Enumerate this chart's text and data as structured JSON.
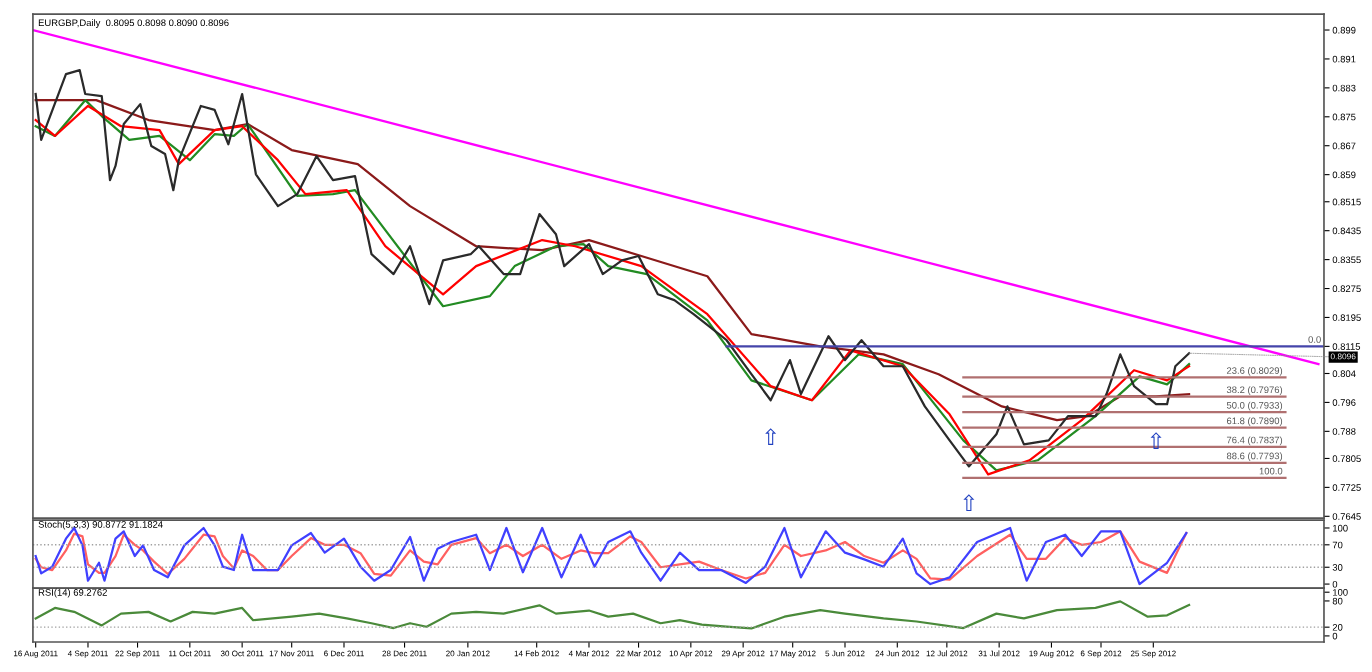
{
  "chart_data": [
    {
      "type": "line",
      "title": "EURGBP,Daily  0.8095 0.8098 0.8090 0.8096",
      "xlim": [
        "2011-08-15",
        "2012-11-26"
      ],
      "ylim": [
        0.764,
        0.9034
      ],
      "yticks": [
        0.899,
        0.891,
        0.883,
        0.875,
        0.867,
        0.859,
        0.8515,
        0.8435,
        0.8355,
        0.8275,
        0.8195,
        0.8115,
        0.804,
        0.796,
        0.788,
        0.7805,
        0.7725,
        0.7645
      ],
      "tick_labels": "y",
      "series": [
        {
          "color": "#ff00ff",
          "x": [
            "2011-08-15",
            "2012-11-24"
          ],
          "values": [
            0.899,
            0.8066
          ]
        },
        {
          "color": "#8b1a1a",
          "x": [
            "2011-08-16",
            "2011-09-07",
            "2011-09-26",
            "2011-10-20",
            "2011-11-01",
            "2011-11-17",
            "2011-12-11",
            "2011-12-30",
            "2012-01-23",
            "2012-02-16",
            "2012-03-04",
            "2012-03-23",
            "2012-04-16",
            "2012-05-02",
            "2012-05-27",
            "2012-06-19",
            "2012-07-09",
            "2012-08-01",
            "2012-08-21",
            "2012-09-01",
            "2012-09-13",
            "2012-09-26",
            "2012-10-08"
          ],
          "values": [
            0.8796,
            0.8796,
            0.8741,
            0.8713,
            0.873,
            0.8658,
            0.8619,
            0.8503,
            0.8392,
            0.8381,
            0.8409,
            0.8365,
            0.8309,
            0.8149,
            0.8115,
            0.8093,
            0.8038,
            0.7949,
            0.7911,
            0.7922,
            0.7977,
            0.7977,
            0.7983
          ]
        },
        {
          "color": "#228b22",
          "x": [
            "2011-08-16",
            "2011-08-23",
            "2011-09-03",
            "2011-09-09",
            "2011-09-19",
            "2011-09-30",
            "2011-10-11",
            "2011-10-20",
            "2011-10-27",
            "2011-11-01",
            "2011-11-19",
            "2011-12-02",
            "2011-12-10",
            "2012-01-11",
            "2012-01-28",
            "2012-02-06",
            "2012-02-21",
            "2012-03-02",
            "2012-03-11",
            "2012-03-25",
            "2012-04-16",
            "2012-05-02",
            "2012-05-24",
            "2012-06-10",
            "2012-06-26",
            "2012-07-18",
            "2012-07-30",
            "2012-08-14",
            "2012-09-04",
            "2012-09-20",
            "2012-09-30",
            "2012-10-08"
          ],
          "values": [
            0.8724,
            0.8697,
            0.8796,
            0.8752,
            0.8686,
            0.8697,
            0.863,
            0.8702,
            0.8697,
            0.873,
            0.8531,
            0.8536,
            0.8547,
            0.8226,
            0.8254,
            0.8337,
            0.8392,
            0.8398,
            0.8337,
            0.8315,
            0.8187,
            0.8021,
            0.7966,
            0.8093,
            0.8066,
            0.7855,
            0.7772,
            0.78,
            0.7922,
            0.8032,
            0.801,
            0.8066
          ]
        },
        {
          "color": "#ff0000",
          "x": [
            "2011-08-16",
            "2011-08-23",
            "2011-09-04",
            "2011-09-16",
            "2011-09-30",
            "2011-10-07",
            "2011-10-20",
            "2011-10-30",
            "2011-11-12",
            "2011-11-22",
            "2011-12-07",
            "2011-12-21",
            "2012-01-11",
            "2012-01-23",
            "2012-02-16",
            "2012-02-28",
            "2012-03-23",
            "2012-04-16",
            "2012-05-09",
            "2012-05-24",
            "2012-06-07",
            "2012-06-26",
            "2012-07-13",
            "2012-07-27",
            "2012-08-11",
            "2012-08-30",
            "2012-09-18",
            "2012-09-30",
            "2012-10-08"
          ],
          "values": [
            0.8741,
            0.8697,
            0.878,
            0.8724,
            0.8713,
            0.8619,
            0.8713,
            0.8724,
            0.863,
            0.8536,
            0.8547,
            0.8392,
            0.8259,
            0.8337,
            0.8409,
            0.8392,
            0.8337,
            0.8204,
            0.8005,
            0.7966,
            0.8104,
            0.806,
            0.7927,
            0.7761,
            0.78,
            0.7911,
            0.8049,
            0.8021,
            0.806
          ]
        },
        {
          "color": "#2a2a2a",
          "x": [
            "2011-08-16",
            "2011-08-18",
            "2011-08-27",
            "2011-09-01",
            "2011-09-03",
            "2011-09-09",
            "2011-09-12",
            "2011-09-14",
            "2011-09-17",
            "2011-09-23",
            "2011-09-27",
            "2011-10-02",
            "2011-10-05",
            "2011-10-07",
            "2011-10-15",
            "2011-10-20",
            "2011-10-25",
            "2011-10-30",
            "2011-11-01",
            "2011-11-04",
            "2011-11-12",
            "2011-11-19",
            "2011-11-26",
            "2011-12-02",
            "2011-12-10",
            "2011-12-16",
            "2011-12-24",
            "2011-12-30",
            "2012-01-06",
            "2012-01-11",
            "2012-01-21",
            "2012-01-24",
            "2012-02-02",
            "2012-02-08",
            "2012-02-15",
            "2012-02-21",
            "2012-02-24",
            "2012-03-04",
            "2012-03-09",
            "2012-03-16",
            "2012-03-22",
            "2012-03-29",
            "2012-04-04",
            "2012-04-11",
            "2012-04-23",
            "2012-05-02",
            "2012-05-09",
            "2012-05-16",
            "2012-05-20",
            "2012-05-30",
            "2012-06-05",
            "2012-06-11",
            "2012-06-19",
            "2012-06-26",
            "2012-07-04",
            "2012-07-13",
            "2012-07-20",
            "2012-07-30",
            "2012-08-03",
            "2012-08-09",
            "2012-08-18",
            "2012-08-25",
            "2012-09-04",
            "2012-09-08",
            "2012-09-13",
            "2012-09-18",
            "2012-09-26",
            "2012-09-30",
            "2012-10-03",
            "2012-10-08"
          ],
          "values": [
            0.8813,
            0.8686,
            0.8868,
            0.8879,
            0.8813,
            0.8807,
            0.8575,
            0.8614,
            0.873,
            0.8785,
            0.8669,
            0.8647,
            0.8547,
            0.863,
            0.878,
            0.8769,
            0.8674,
            0.8813,
            0.8724,
            0.8591,
            0.8503,
            0.8536,
            0.8641,
            0.8575,
            0.8586,
            0.837,
            0.8315,
            0.8392,
            0.8232,
            0.8353,
            0.837,
            0.8392,
            0.8315,
            0.8315,
            0.8481,
            0.8425,
            0.8337,
            0.8398,
            0.8315,
            0.8353,
            0.8365,
            0.8259,
            0.8243,
            0.8204,
            0.8132,
            0.8038,
            0.7966,
            0.8077,
            0.7983,
            0.8143,
            0.8077,
            0.8132,
            0.806,
            0.806,
            0.7949,
            0.7855,
            0.7783,
            0.7872,
            0.7949,
            0.7844,
            0.7855,
            0.7922,
            0.7922,
            0.7983,
            0.8093,
            0.8005,
            0.7955,
            0.7955,
            0.806,
            0.8096
          ]
        },
        {
          "name": "0.0",
          "color": "#4444aa",
          "x": [
            "2012-04-23",
            "2012-11-26"
          ],
          "values": [
            0.8115,
            0.8115
          ]
        },
        {
          "name": "23.6 (0.8029)",
          "color": "#b07070",
          "x": [
            "2012-07-18",
            "2012-11-12"
          ],
          "values": [
            0.8029,
            0.8029
          ]
        },
        {
          "name": "38.2 (0.7976)",
          "color": "#b07070",
          "x": [
            "2012-07-18",
            "2012-11-12"
          ],
          "values": [
            0.7976,
            0.7976
          ]
        },
        {
          "name": "50.0 (0.7933)",
          "color": "#b07070",
          "x": [
            "2012-07-18",
            "2012-11-12"
          ],
          "values": [
            0.7933,
            0.7933
          ]
        },
        {
          "name": "61.8 (0.7890)",
          "color": "#b07070",
          "x": [
            "2012-07-18",
            "2012-11-12"
          ],
          "values": [
            0.789,
            0.789
          ]
        },
        {
          "name": "76.4 (0.7837)",
          "color": "#b07070",
          "x": [
            "2012-07-18",
            "2012-11-12"
          ],
          "values": [
            0.7837,
            0.7837
          ]
        },
        {
          "name": "88.6 (0.7793)",
          "color": "#b07070",
          "x": [
            "2012-07-18",
            "2012-11-12"
          ],
          "values": [
            0.7793,
            0.7793
          ]
        },
        {
          "name": "100.0",
          "color": "#b07070",
          "x": [
            "2012-07-18",
            "2012-11-12"
          ],
          "values": [
            0.7751,
            0.7751
          ]
        }
      ],
      "annotations": [
        {
          "text": "0.8096",
          "x": "2012-10-08",
          "y": 0.8096
        },
        {
          "text": "⇧",
          "x": "2012-05-09",
          "y": 0.7966
        },
        {
          "text": "⇧",
          "x": "2012-07-20",
          "y": 0.7783
        },
        {
          "text": "⇧",
          "x": "2012-09-26",
          "y": 0.7955
        }
      ]
    },
    {
      "type": "line",
      "title": "Stoch(5,3,3) 90.8772 91.1824",
      "xlim": [
        "2011-08-15",
        "2012-11-26"
      ],
      "ylim": [
        -7,
        114
      ],
      "yticks": [
        0,
        30,
        70,
        100
      ],
      "tick_labels": "y",
      "x": [
        "2011-08-16",
        "2011-08-18",
        "2011-08-22",
        "2011-08-27",
        "2011-08-30",
        "2011-09-02",
        "2011-09-04",
        "2011-09-08",
        "2011-09-10",
        "2011-09-14",
        "2011-09-17",
        "2011-09-21",
        "2011-09-24",
        "2011-09-28",
        "2011-10-03",
        "2011-10-09",
        "2011-10-16",
        "2011-10-20",
        "2011-10-23",
        "2011-10-27",
        "2011-10-30",
        "2011-11-03",
        "2011-11-08",
        "2011-11-12",
        "2011-11-17",
        "2011-11-24",
        "2011-11-29",
        "2011-12-06",
        "2011-12-12",
        "2011-12-17",
        "2011-12-23",
        "2011-12-30",
        "2012-01-04",
        "2012-01-09",
        "2012-01-14",
        "2012-01-23",
        "2012-01-28",
        "2012-02-03",
        "2012-02-09",
        "2012-02-16",
        "2012-02-23",
        "2012-03-01",
        "2012-03-06",
        "2012-03-11",
        "2012-03-19",
        "2012-03-23",
        "2012-03-30",
        "2012-04-06",
        "2012-04-13",
        "2012-04-21",
        "2012-04-30",
        "2012-05-07",
        "2012-05-14",
        "2012-05-20",
        "2012-05-29",
        "2012-06-05",
        "2012-06-12",
        "2012-06-19",
        "2012-06-26",
        "2012-07-01",
        "2012-07-06",
        "2012-07-13",
        "2012-07-23",
        "2012-08-04",
        "2012-08-10",
        "2012-08-17",
        "2012-08-24",
        "2012-08-30",
        "2012-09-06",
        "2012-09-13",
        "2012-09-20",
        "2012-09-30",
        "2012-10-07"
      ],
      "series": [
        {
          "color": "#ff6060",
          "values": [
            45,
            30,
            25,
            60,
            90,
            85,
            35,
            20,
            20,
            50,
            88,
            70,
            60,
            40,
            18,
            45,
            88,
            85,
            50,
            28,
            60,
            50,
            25,
            25,
            50,
            82,
            70,
            70,
            55,
            18,
            15,
            60,
            40,
            35,
            70,
            82,
            55,
            70,
            50,
            70,
            45,
            60,
            55,
            55,
            85,
            75,
            30,
            35,
            40,
            25,
            10,
            20,
            70,
            50,
            60,
            75,
            50,
            38,
            60,
            45,
            10,
            8,
            50,
            88,
            45,
            45,
            82,
            70,
            75,
            94,
            40,
            20,
            91
          ]
        },
        {
          "color": "#4040ff",
          "values": [
            50,
            19,
            31,
            81,
            100,
            69,
            6,
            38,
            6,
            81,
            94,
            50,
            69,
            25,
            12,
            69,
            100,
            69,
            31,
            25,
            88,
            25,
            25,
            25,
            69,
            91,
            56,
            81,
            31,
            6,
            25,
            84,
            6,
            63,
            75,
            88,
            25,
            100,
            21,
            100,
            12,
            88,
            31,
            75,
            94,
            56,
            6,
            56,
            25,
            25,
            2,
            31,
            100,
            12,
            94,
            56,
            44,
            31,
            81,
            19,
            0,
            12,
            75,
            100,
            6,
            75,
            88,
            50,
            94,
            94,
            0,
            38,
            91
          ]
        }
      ],
      "ref_lines": [
        {
          "axis": "y",
          "value": 30,
          "color": "#a0a0a0",
          "line_style": "dotted"
        },
        {
          "axis": "y",
          "value": 70,
          "color": "#a0a0a0",
          "line_style": "dotted"
        }
      ]
    },
    {
      "type": "line",
      "title": "RSI(14) 69.2762",
      "xlim": [
        "2011-08-15",
        "2012-11-26"
      ],
      "ylim": [
        -14,
        109
      ],
      "yticks": [
        0,
        20,
        80,
        100
      ],
      "xticks": [
        {
          "value": "2011-08-16",
          "label": "16 Aug 2011"
        },
        {
          "value": "2011-09-04",
          "label": "4 Sep 2011"
        },
        {
          "value": "2011-09-22",
          "label": "22 Sep 2011"
        },
        {
          "value": "2011-10-11",
          "label": "11 Oct 2011"
        },
        {
          "value": "2011-10-30",
          "label": "30 Oct 2011"
        },
        {
          "value": "2011-11-17",
          "label": "17 Nov 2011"
        },
        {
          "value": "2011-12-06",
          "label": "6 Dec 2011"
        },
        {
          "value": "2011-12-28",
          "label": "28 Dec 2011"
        },
        {
          "value": "2012-01-20",
          "label": "20 Jan 2012"
        },
        {
          "value": "2012-02-14",
          "label": "14 Feb 2012"
        },
        {
          "value": "2012-03-04",
          "label": "4 Mar 2012"
        },
        {
          "value": "2012-03-22",
          "label": "22 Mar 2012"
        },
        {
          "value": "2012-04-10",
          "label": "10 Apr 2012"
        },
        {
          "value": "2012-04-29",
          "label": "29 Apr 2012"
        },
        {
          "value": "2012-05-17",
          "label": "17 May 2012"
        },
        {
          "value": "2012-06-05",
          "label": "5 Jun 2012"
        },
        {
          "value": "2012-06-24",
          "label": "24 Jun 2012"
        },
        {
          "value": "2012-07-12",
          "label": "12 Jul 2012"
        },
        {
          "value": "2012-07-31",
          "label": "31 Jul 2012"
        },
        {
          "value": "2012-08-19",
          "label": "19 Aug 2012"
        },
        {
          "value": "2012-09-06",
          "label": "6 Sep 2012"
        },
        {
          "value": "2012-09-25",
          "label": "25 Sep 2012"
        }
      ],
      "series": [
        {
          "color": "#4a8a3a",
          "x": [
            "2011-08-16",
            "2011-08-23",
            "2011-08-30",
            "2011-09-09",
            "2011-09-16",
            "2011-09-26",
            "2011-10-04",
            "2011-10-12",
            "2011-10-20",
            "2011-10-30",
            "2011-11-03",
            "2011-11-17",
            "2011-11-27",
            "2011-12-07",
            "2011-12-16",
            "2011-12-24",
            "2011-12-30",
            "2012-01-05",
            "2012-01-14",
            "2012-01-23",
            "2012-02-02",
            "2012-02-15",
            "2012-02-21",
            "2012-03-04",
            "2012-03-11",
            "2012-03-20",
            "2012-03-30",
            "2012-04-06",
            "2012-04-14",
            "2012-04-23",
            "2012-05-02",
            "2012-05-14",
            "2012-05-27",
            "2012-06-05",
            "2012-06-19",
            "2012-07-01",
            "2012-07-18",
            "2012-07-30",
            "2012-08-09",
            "2012-08-21",
            "2012-09-04",
            "2012-09-13",
            "2012-09-23",
            "2012-09-30",
            "2012-10-08"
          ],
          "values": [
            40,
            64,
            55,
            24,
            51,
            55,
            33,
            55,
            51,
            64,
            36,
            44,
            51,
            40,
            29,
            18,
            29,
            21,
            51,
            55,
            51,
            70,
            51,
            58,
            44,
            51,
            29,
            36,
            26,
            21,
            17,
            44,
            59,
            51,
            40,
            33,
            18,
            51,
            40,
            59,
            64,
            79,
            44,
            47,
            71
          ]
        }
      ],
      "ref_lines": [
        {
          "axis": "y",
          "value": 20,
          "color": "#a0a0a0",
          "line_style": "dotted"
        }
      ]
    }
  ]
}
